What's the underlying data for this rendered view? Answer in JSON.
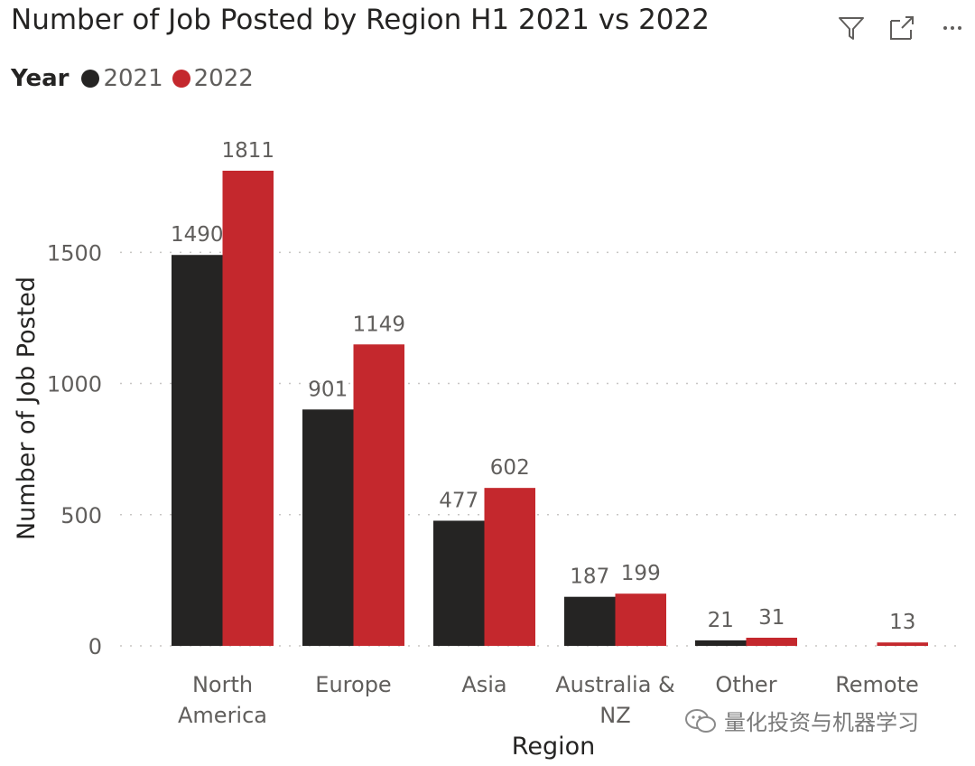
{
  "header": {
    "title": "Number of Job Posted by Region H1 2021 vs 2022",
    "icons": [
      "filter-icon",
      "focus-mode-icon",
      "more-options-icon"
    ]
  },
  "legend": {
    "title": "Year",
    "items": [
      {
        "label": "2021",
        "color": "#252423"
      },
      {
        "label": "2022",
        "color": "#c4282d"
      }
    ]
  },
  "watermark": {
    "text": "量化投资与机器学习"
  },
  "chart_data": {
    "type": "bar",
    "title": "Number of Job Posted by Region H1 2021 vs 2022",
    "xlabel": "Region",
    "ylabel": "Number of Job Posted",
    "categories": [
      [
        "North",
        "America"
      ],
      [
        "Europe"
      ],
      [
        "Asia"
      ],
      [
        "Australia &",
        "NZ"
      ],
      [
        "Other"
      ],
      [
        "Remote"
      ]
    ],
    "series": [
      {
        "name": "2021",
        "color": "#252423",
        "values": [
          1490,
          901,
          477,
          187,
          21,
          null
        ]
      },
      {
        "name": "2022",
        "color": "#c4282d",
        "values": [
          1811,
          1149,
          602,
          199,
          31,
          13
        ]
      }
    ],
    "yticks": [
      0,
      500,
      1000,
      1500
    ],
    "ylim": [
      0,
      1811
    ],
    "grid": true,
    "data_labels": true,
    "legend_position": "top-left"
  }
}
